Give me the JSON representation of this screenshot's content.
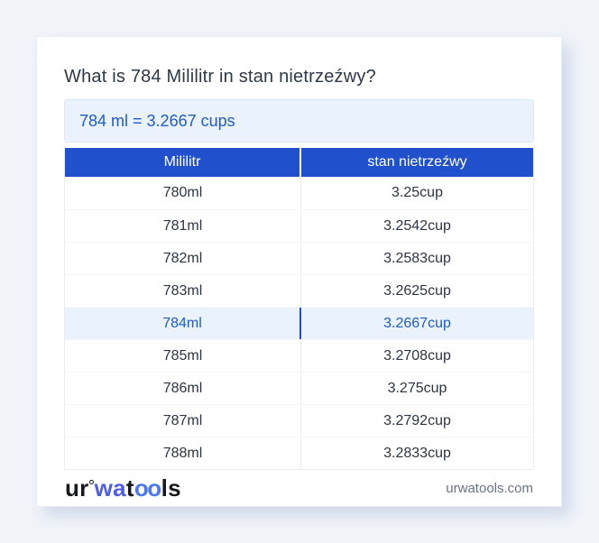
{
  "title": "What is 784 Mililitr in stan nietrzeźwy?",
  "answer": {
    "text": "784 ml = 3.2667 cups"
  },
  "table": {
    "headers": [
      "Mililitr",
      "stan nietrzeźwy"
    ],
    "highlight_index": 4,
    "rows": [
      {
        "ml": "780ml",
        "cups": "3.25cup"
      },
      {
        "ml": "781ml",
        "cups": "3.2542cup"
      },
      {
        "ml": "782ml",
        "cups": "3.2583cup"
      },
      {
        "ml": "783ml",
        "cups": "3.2625cup"
      },
      {
        "ml": "784ml",
        "cups": "3.2667cup"
      },
      {
        "ml": "785ml",
        "cups": "3.2708cup"
      },
      {
        "ml": "786ml",
        "cups": "3.275cup"
      },
      {
        "ml": "787ml",
        "cups": "3.2792cup"
      },
      {
        "ml": "788ml",
        "cups": "3.2833cup"
      }
    ]
  },
  "footer": {
    "logo": {
      "ur": "ur",
      "wa": "wa",
      "t": "t",
      "oo": "oo",
      "ls": "ls"
    },
    "site": "urwatools.com"
  },
  "colors": {
    "page_bg": "#f1f4f9",
    "header_bg": "#2150cd",
    "accent_text": "#1f5cc5",
    "highlight_bg": "#eaf2fd",
    "answer_bg": "#eaf2fd",
    "highlight_divider": "#1d52c4",
    "logo_blue_wa": "#4d5de4",
    "logo_blue_oo": "#4c79ef",
    "logo_dark": "#17191f",
    "site_gray": "#6b7380"
  }
}
